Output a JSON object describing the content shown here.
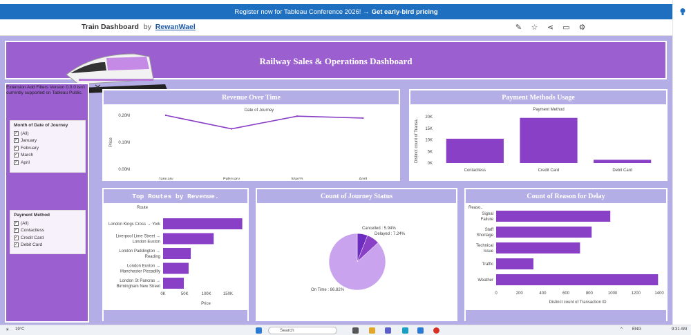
{
  "banner": {
    "text": "Register now for Tableau Conference 2026! →",
    "cta": "Get early-bird pricing"
  },
  "viz": {
    "title": "Train Dashboard",
    "by": "by",
    "author": "RewanWael"
  },
  "header": {
    "title": "Railway Sales & Operations Dashboard"
  },
  "sidebar": {
    "extension_note": "Extension Add Filters Version 0.0.0 isn't currently supported on Tableau Public.",
    "month_filter": {
      "title": "Month of Date of Journey",
      "options": [
        "(All)",
        "January",
        "February",
        "March",
        "April"
      ]
    },
    "payment_filter": {
      "title": "Payment Method",
      "options": [
        "(All)",
        "Contactless",
        "Credit Card",
        "Debit Card"
      ]
    }
  },
  "revenue_card": {
    "title": "Revenue Over Time"
  },
  "payment_card": {
    "title": "Payment Methods Usage"
  },
  "routes_card": {
    "title": "Top Routes by Revenue."
  },
  "status_card": {
    "title": "Count of Journey Status"
  },
  "delay_card": {
    "title": "Count of Reason for Delay"
  },
  "chart_data": [
    {
      "type": "line",
      "title": "Date of Journey",
      "ylabel": "Price",
      "categories": [
        "January",
        "February",
        "March",
        "April"
      ],
      "values": [
        200000,
        150000,
        197000,
        190000
      ],
      "ylim": [
        0,
        200000
      ],
      "yticks": [
        "0.00M",
        "0.10M",
        "0.20M"
      ],
      "ytick_values": [
        0,
        100000,
        200000
      ],
      "color": "#8a3fc7"
    },
    {
      "type": "bar",
      "title": "Payment Method",
      "ylabel": "Distinct count of Transa..",
      "categories": [
        "Contactless",
        "Credit Card",
        "Debit Card"
      ],
      "values": [
        10500,
        19500,
        1400
      ],
      "ylim": [
        0,
        20000
      ],
      "yticks": [
        "0K",
        "5K",
        "10K",
        "15K",
        "20K"
      ],
      "ytick_values": [
        0,
        5000,
        10000,
        15000,
        20000
      ],
      "color": "#8a3fc7"
    },
    {
      "type": "bar",
      "orientation": "horizontal",
      "ylabel": "Route",
      "xlabel": "Price",
      "categories": [
        "London Kings Cross → York",
        "Liverpool Lime Street → London Euston",
        "London Paddington → Reading",
        "London Euston → Manchester Piccadilly",
        "London St Pancras → Birmingham New Street"
      ],
      "values": [
        183000,
        117000,
        64000,
        59000,
        48000
      ],
      "xlim": [
        0,
        190000
      ],
      "xticks": [
        "0K",
        "50K",
        "100K",
        "150K"
      ],
      "xtick_values": [
        0,
        50000,
        100000,
        150000
      ],
      "color": "#8a3fc7"
    },
    {
      "type": "pie",
      "categories": [
        "On Time",
        "Cancelled",
        "Delayed"
      ],
      "values": [
        86.82,
        5.94,
        7.24
      ],
      "labels": [
        "On Time : 86.82%",
        "Cancelled : 5.94%",
        "Delayed : 7.24%"
      ],
      "colors": [
        "#c9a3ee",
        "#6c2cbf",
        "#8a3fc7"
      ]
    },
    {
      "type": "bar",
      "orientation": "horizontal",
      "ylabel": "Reaso..",
      "xlabel": "Distinct count of Transaction ID",
      "categories": [
        "Signal Failure",
        "Staff Shortage",
        "Technical Issue",
        "Traffic",
        "Weather"
      ],
      "values": [
        980,
        820,
        720,
        320,
        1390
      ],
      "xlim": [
        0,
        1400
      ],
      "xticks": [
        "0",
        "200",
        "400",
        "600",
        "800",
        "1000",
        "1200",
        "1400"
      ],
      "xtick_values": [
        0,
        200,
        400,
        600,
        800,
        1000,
        1200,
        1400
      ],
      "color": "#8a3fc7"
    }
  ],
  "taskbar": {
    "weather": "19°C",
    "search": "Search",
    "lang": "ENG",
    "time": "9:31 AM"
  }
}
